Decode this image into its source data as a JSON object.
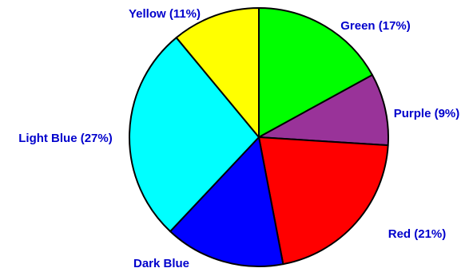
{
  "chart_data": {
    "type": "pie",
    "slices": [
      {
        "name": "Green",
        "value": 17,
        "label": "Green (17%)",
        "color": "#00ff00"
      },
      {
        "name": "Purple",
        "value": 9,
        "label": "Purple (9%)",
        "color": "#993399"
      },
      {
        "name": "Red",
        "value": 21,
        "label": "Red (21%)",
        "color": "#ff0000"
      },
      {
        "name": "Dark Blue",
        "value": 15,
        "label": "Dark Blue",
        "color": "#0000ff"
      },
      {
        "name": "Light Blue",
        "value": 27,
        "label": "Light Blue (27%)",
        "color": "#00ffff"
      },
      {
        "name": "Yellow",
        "value": 11,
        "label": "Yellow (11%)",
        "color": "#ffff00"
      }
    ],
    "label_color": "#0000cc",
    "start_angle": "12 o'clock",
    "direction": "clockwise"
  }
}
